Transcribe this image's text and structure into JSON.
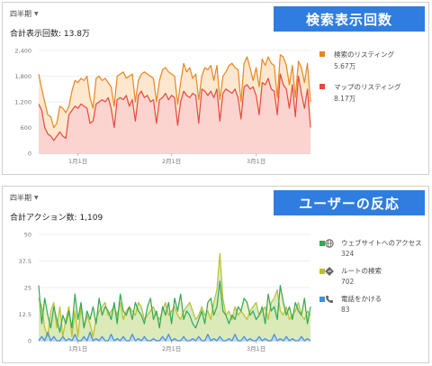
{
  "colors": {
    "banner": "#2f7de0",
    "search": "#e8861f",
    "maps": "#e8483f",
    "maps_fill": "#fbd4d0",
    "search_fill": "#fde7cf",
    "website": "#33a853",
    "route": "#b9c12a",
    "calls": "#3e8de6"
  },
  "card1": {
    "banner": "検索表示回数",
    "period": "四半期",
    "total_label": "合計表示回数: 13.8万",
    "legend": [
      {
        "name": "検索のリスティング",
        "value": "5.67万",
        "color": "#e8861f"
      },
      {
        "name": "マップのリスティング",
        "value": "8.17万",
        "color": "#e8483f"
      }
    ]
  },
  "card2": {
    "banner": "ユーザーの反応",
    "period": "四半期",
    "total_label": "合計アクション数: 1,109",
    "legend": [
      {
        "name": "ウェブサイトへのアクセス",
        "value": "324",
        "color": "#33a853",
        "icon": "globe-icon"
      },
      {
        "name": "ルートの検索",
        "value": "702",
        "color": "#b9c12a",
        "icon": "directions-icon"
      },
      {
        "name": "電話をかける",
        "value": "83",
        "color": "#3e8de6",
        "icon": "phone-icon"
      }
    ]
  },
  "chart_data": [
    {
      "type": "area",
      "ylim": [
        0,
        2400
      ],
      "yticks": [
        "0",
        "600",
        "1,200",
        "1,800",
        "2,400"
      ],
      "xticks": [
        {
          "label": "1月1日",
          "index": 13
        },
        {
          "label": "2月1日",
          "index": 44
        },
        {
          "label": "3月1日",
          "index": 72
        }
      ],
      "series": [
        {
          "name": "検索のリスティング",
          "values": [
            1850,
            1500,
            1200,
            900,
            850,
            600,
            700,
            1100,
            1050,
            950,
            1100,
            1450,
            1700,
            1650,
            1750,
            1700,
            1800,
            1300,
            1050,
            1750,
            1800,
            1700,
            1750,
            1650,
            1550,
            1100,
            1800,
            1850,
            1900,
            1750,
            1800,
            1850,
            1200,
            1700,
            1850,
            1900,
            1850,
            1800,
            1750,
            1200,
            1700,
            1950,
            2000,
            1900,
            1850,
            1800,
            1150,
            1650,
            2100,
            1900,
            2000,
            1750,
            1850,
            1250,
            1800,
            2000,
            1950,
            2050,
            1700,
            2050,
            1250,
            1800,
            1900,
            2050,
            2100,
            2000,
            1950,
            1200,
            2100,
            2250,
            2000,
            1700,
            2000,
            1550,
            2200,
            2050,
            2250,
            2100,
            2050,
            1300,
            2300,
            2250,
            2050,
            1600,
            2050,
            1300,
            2150,
            2000,
            1650,
            2100,
            1200
          ]
        },
        {
          "name": "マップのリスティング",
          "values": [
            1150,
            1000,
            600,
            450,
            400,
            300,
            400,
            500,
            400,
            350,
            900,
            1000,
            1100,
            1050,
            1150,
            1100,
            1050,
            700,
            750,
            1150,
            1200,
            1250,
            1200,
            1300,
            1050,
            600,
            1250,
            1300,
            1250,
            1350,
            1100,
            1250,
            750,
            1350,
            1450,
            1300,
            1350,
            1200,
            1250,
            700,
            1250,
            1300,
            1400,
            1250,
            1350,
            1300,
            650,
            1200,
            1450,
            1350,
            1300,
            1400,
            1350,
            700,
            1500,
            1450,
            1350,
            1450,
            1300,
            1500,
            750,
            1400,
            1500,
            1450,
            1400,
            1500,
            1300,
            800,
            1550,
            1600,
            1500,
            1550,
            1350,
            900,
            1650,
            1600,
            1750,
            1500,
            1450,
            900,
            1850,
            1600,
            1500,
            1050,
            1600,
            850,
            1800,
            1400,
            1050,
            1500,
            600
          ]
        }
      ]
    },
    {
      "type": "area",
      "ylim": [
        0,
        50
      ],
      "yticks": [
        "0",
        "12.5",
        "25",
        "37.5",
        "50"
      ],
      "xticks": [
        {
          "label": "1月1日",
          "index": 13
        },
        {
          "label": "2月1日",
          "index": 44
        },
        {
          "label": "3月1日",
          "index": 72
        }
      ],
      "series": [
        {
          "name": "ウェブサイトへのアクセス",
          "values": [
            26,
            8,
            20,
            12,
            6,
            16,
            10,
            4,
            12,
            8,
            14,
            6,
            22,
            10,
            18,
            6,
            14,
            10,
            16,
            8,
            20,
            12,
            16,
            14,
            10,
            18,
            8,
            22,
            14,
            12,
            16,
            10,
            18,
            14,
            12,
            8,
            16,
            20,
            10,
            14,
            6,
            16,
            12,
            18,
            8,
            20,
            14,
            22,
            10,
            14,
            12,
            8,
            6,
            10,
            14,
            8,
            18,
            20,
            12,
            16,
            28,
            14,
            12,
            8,
            12,
            10,
            16,
            14,
            20,
            18,
            12,
            14,
            10,
            12,
            16,
            8,
            22,
            14,
            16,
            10,
            26,
            18,
            12,
            16,
            10,
            18,
            14,
            12,
            20,
            8,
            16
          ]
        },
        {
          "name": "ルートの検索",
          "values": [
            20,
            16,
            6,
            2,
            14,
            18,
            6,
            16,
            2,
            10,
            16,
            2,
            14,
            2,
            16,
            6,
            12,
            8,
            2,
            10,
            14,
            16,
            18,
            12,
            14,
            16,
            12,
            18,
            10,
            14,
            16,
            14,
            12,
            18,
            16,
            10,
            12,
            14,
            16,
            12,
            10,
            14,
            18,
            12,
            14,
            16,
            12,
            10,
            14,
            16,
            18,
            14,
            10,
            12,
            16,
            12,
            14,
            10,
            18,
            24,
            41,
            20,
            12,
            14,
            10,
            16,
            12,
            14,
            12,
            10,
            14,
            16,
            18,
            12,
            14,
            16,
            10,
            18,
            20,
            24,
            14,
            12,
            16,
            10,
            12,
            14,
            18,
            12,
            10,
            14,
            12
          ]
        },
        {
          "name": "電話をかける",
          "values": [
            0,
            2,
            0,
            4,
            0,
            2,
            0,
            0,
            2,
            0,
            1,
            0,
            3,
            0,
            0,
            2,
            0,
            4,
            0,
            1,
            0,
            2,
            0,
            0,
            3,
            0,
            1,
            0,
            2,
            0,
            0,
            3,
            0,
            1,
            0,
            2,
            0,
            0,
            1,
            0,
            0,
            2,
            0,
            3,
            0,
            1,
            0,
            0,
            2,
            0,
            0,
            1,
            0,
            2,
            0,
            0,
            3,
            0,
            1,
            0,
            2,
            0,
            0,
            1,
            0,
            3,
            0,
            0,
            2,
            0,
            1,
            0,
            0,
            2,
            0,
            1,
            0,
            0,
            3,
            0,
            1,
            0,
            2,
            0,
            1,
            0,
            0,
            2,
            0,
            1,
            0
          ]
        }
      ]
    }
  ]
}
